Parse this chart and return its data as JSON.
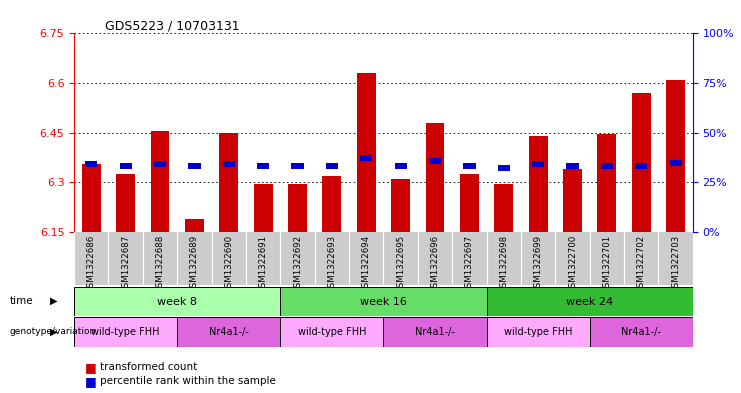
{
  "title": "GDS5223 / 10703131",
  "samples": [
    "GSM1322686",
    "GSM1322687",
    "GSM1322688",
    "GSM1322689",
    "GSM1322690",
    "GSM1322691",
    "GSM1322692",
    "GSM1322693",
    "GSM1322694",
    "GSM1322695",
    "GSM1322696",
    "GSM1322697",
    "GSM1322698",
    "GSM1322699",
    "GSM1322700",
    "GSM1322701",
    "GSM1322702",
    "GSM1322703"
  ],
  "red_values": [
    6.355,
    6.325,
    6.455,
    6.19,
    6.45,
    6.295,
    6.295,
    6.32,
    6.63,
    6.31,
    6.48,
    6.325,
    6.295,
    6.44,
    6.34,
    6.445,
    6.57,
    6.61
  ],
  "blue_values": [
    6.345,
    6.34,
    6.345,
    6.34,
    6.345,
    6.34,
    6.34,
    6.34,
    6.365,
    6.34,
    6.355,
    6.34,
    6.335,
    6.345,
    6.34,
    6.34,
    6.34,
    6.35
  ],
  "ymin": 6.15,
  "ymax": 6.75,
  "yticks": [
    6.15,
    6.3,
    6.45,
    6.6,
    6.75
  ],
  "ytick_labels": [
    "6.15",
    "6.3",
    "6.45",
    "6.6",
    "6.75"
  ],
  "y2ticks": [
    0,
    25,
    50,
    75,
    100
  ],
  "bar_color": "#cc0000",
  "blue_color": "#0000cc",
  "time_groups": [
    {
      "label": "week 8",
      "start": 0,
      "end": 6,
      "color": "#aaffaa"
    },
    {
      "label": "week 16",
      "start": 6,
      "end": 12,
      "color": "#66dd66"
    },
    {
      "label": "week 24",
      "start": 12,
      "end": 18,
      "color": "#33bb33"
    }
  ],
  "genotype_groups": [
    {
      "label": "wild-type FHH",
      "start": 0,
      "end": 3,
      "color": "#ffaaff"
    },
    {
      "label": "Nr4a1-/-",
      "start": 3,
      "end": 6,
      "color": "#dd66dd"
    },
    {
      "label": "wild-type FHH",
      "start": 6,
      "end": 9,
      "color": "#ffaaff"
    },
    {
      "label": "Nr4a1-/-",
      "start": 9,
      "end": 12,
      "color": "#dd66dd"
    },
    {
      "label": "wild-type FHH",
      "start": 12,
      "end": 15,
      "color": "#ffaaff"
    },
    {
      "label": "Nr4a1-/-",
      "start": 15,
      "end": 18,
      "color": "#dd66dd"
    }
  ],
  "legend_red": "transformed count",
  "legend_blue": "percentile rank within the sample",
  "bar_width": 0.55,
  "bg_color": "#ffffff",
  "label_bg_color": "#cccccc"
}
